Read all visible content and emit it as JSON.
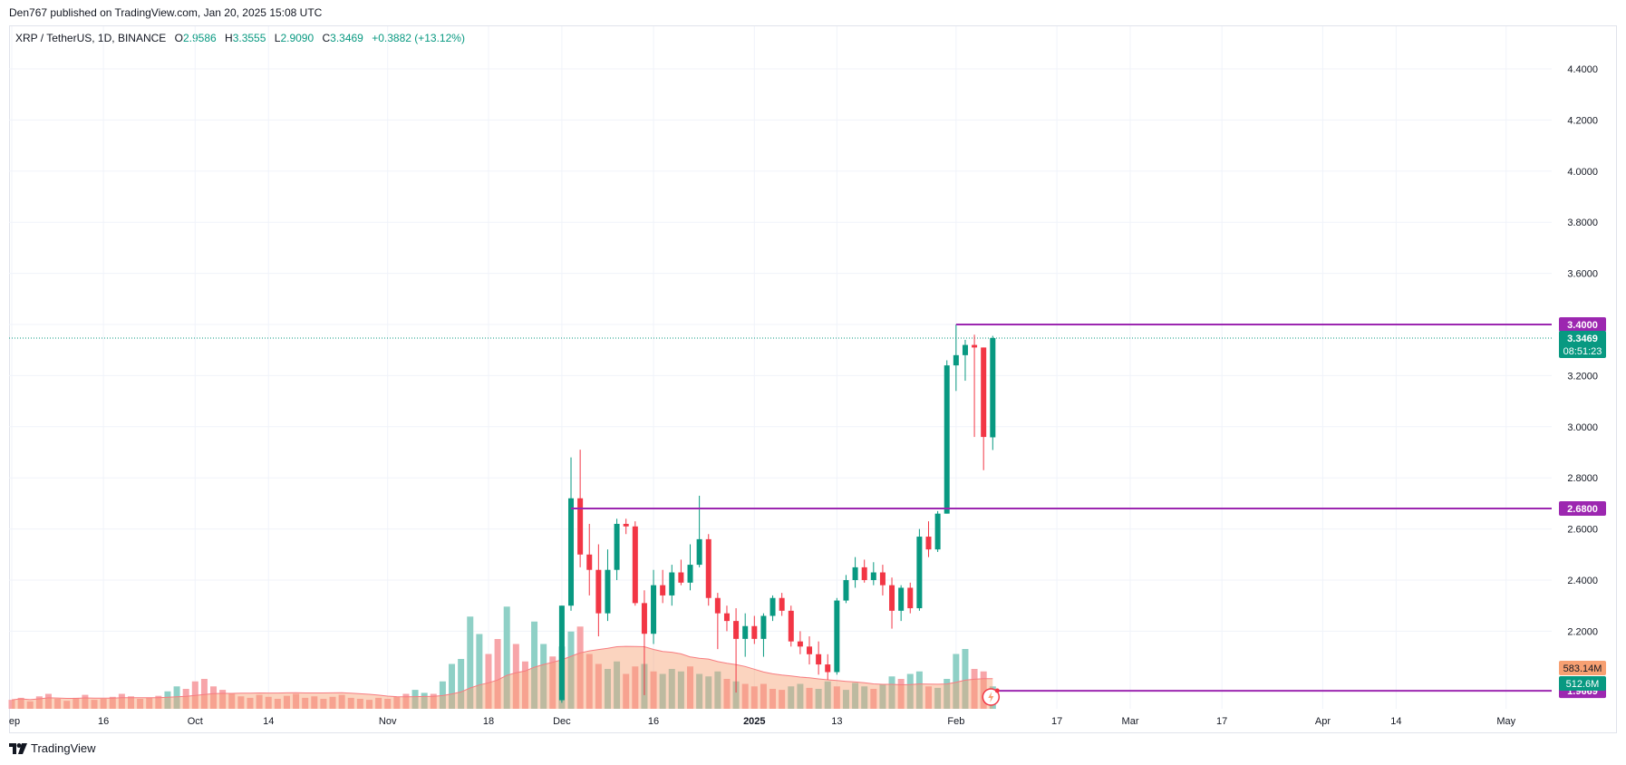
{
  "header": {
    "published_by": "Den767 published on TradingView.com, Jan 20, 2025 15:08 UTC"
  },
  "legend": {
    "symbol": "XRP / TetherUS, 1D, BINANCE",
    "open_label": "O",
    "open": "2.9586",
    "high_label": "H",
    "high": "3.3555",
    "low_label": "L",
    "low": "2.9090",
    "close_label": "C",
    "close": "3.3469",
    "change": "+0.3882 (+13.12%)"
  },
  "footer": {
    "brand": "TradingView"
  },
  "colors": {
    "up": "#089981",
    "down": "#f23645",
    "level": "#9c27b0",
    "vol_up": "#8fd0c6",
    "vol_down": "#f7a5a9",
    "vol_ma": "#f7a072"
  },
  "chart_data": {
    "type": "candlestick",
    "title": "XRP / TetherUS, 1D, BINANCE",
    "yaxis": {
      "ticks": [
        "4.4000",
        "4.2000",
        "4.0000",
        "3.8000",
        "3.6000",
        "3.4000",
        "3.2000",
        "3.0000",
        "2.8000",
        "2.6000",
        "2.4000",
        "2.2000"
      ],
      "tick_values": [
        4.4,
        4.2,
        4.0,
        3.8,
        3.6,
        3.4,
        3.2,
        3.0,
        2.8,
        2.6,
        2.4,
        2.2
      ],
      "range": [
        1.92,
        4.52
      ]
    },
    "xaxis": {
      "labels": [
        {
          "text": "ep",
          "bar": 0
        },
        {
          "text": "16",
          "bar": 10
        },
        {
          "text": "Oct",
          "bar": 20
        },
        {
          "text": "14",
          "bar": 28
        },
        {
          "text": "Nov",
          "bar": 41
        },
        {
          "text": "18",
          "bar": 52
        },
        {
          "text": "Dec",
          "bar": 60
        },
        {
          "text": "16",
          "bar": 70
        },
        {
          "text": "2025",
          "bar": 81
        },
        {
          "text": "13",
          "bar": 90
        },
        {
          "text": "Feb",
          "bar": 103
        },
        {
          "text": "17",
          "bar": 114
        },
        {
          "text": "Mar",
          "bar": 122
        },
        {
          "text": "17",
          "bar": 132
        },
        {
          "text": "Apr",
          "bar": 143
        },
        {
          "text": "14",
          "bar": 151
        },
        {
          "text": "May",
          "bar": 163
        }
      ]
    },
    "candles_start_bar": 60,
    "candles": [
      {
        "o": 1.93,
        "h": 2.3,
        "l": 1.92,
        "c": 2.3
      },
      {
        "o": 2.3,
        "h": 2.88,
        "l": 2.28,
        "c": 2.72
      },
      {
        "o": 2.72,
        "h": 2.91,
        "l": 2.45,
        "c": 2.5
      },
      {
        "o": 2.5,
        "h": 2.62,
        "l": 2.34,
        "c": 2.44
      },
      {
        "o": 2.44,
        "h": 2.54,
        "l": 2.18,
        "c": 2.27
      },
      {
        "o": 2.27,
        "h": 2.52,
        "l": 2.24,
        "c": 2.44
      },
      {
        "o": 2.44,
        "h": 2.64,
        "l": 2.4,
        "c": 2.62
      },
      {
        "o": 2.62,
        "h": 2.64,
        "l": 2.58,
        "c": 2.61
      },
      {
        "o": 2.61,
        "h": 2.63,
        "l": 2.3,
        "c": 2.31
      },
      {
        "o": 2.31,
        "h": 2.36,
        "l": 1.95,
        "c": 2.19
      },
      {
        "o": 2.19,
        "h": 2.44,
        "l": 2.15,
        "c": 2.38
      },
      {
        "o": 2.38,
        "h": 2.44,
        "l": 2.31,
        "c": 2.34
      },
      {
        "o": 2.34,
        "h": 2.46,
        "l": 2.3,
        "c": 2.43
      },
      {
        "o": 2.43,
        "h": 2.48,
        "l": 2.38,
        "c": 2.39
      },
      {
        "o": 2.39,
        "h": 2.54,
        "l": 2.36,
        "c": 2.46
      },
      {
        "o": 2.46,
        "h": 2.73,
        "l": 2.45,
        "c": 2.56
      },
      {
        "o": 2.56,
        "h": 2.58,
        "l": 2.3,
        "c": 2.33
      },
      {
        "o": 2.33,
        "h": 2.35,
        "l": 2.13,
        "c": 2.27
      },
      {
        "o": 2.27,
        "h": 2.3,
        "l": 2.2,
        "c": 2.24
      },
      {
        "o": 2.24,
        "h": 2.29,
        "l": 1.96,
        "c": 2.17
      },
      {
        "o": 2.17,
        "h": 2.27,
        "l": 2.1,
        "c": 2.22
      },
      {
        "o": 2.22,
        "h": 2.26,
        "l": 2.15,
        "c": 2.17
      },
      {
        "o": 2.17,
        "h": 2.27,
        "l": 2.1,
        "c": 2.26
      },
      {
        "o": 2.26,
        "h": 2.34,
        "l": 2.24,
        "c": 2.33
      },
      {
        "o": 2.33,
        "h": 2.35,
        "l": 2.26,
        "c": 2.28
      },
      {
        "o": 2.28,
        "h": 2.3,
        "l": 2.14,
        "c": 2.16
      },
      {
        "o": 2.16,
        "h": 2.2,
        "l": 2.11,
        "c": 2.14
      },
      {
        "o": 2.14,
        "h": 2.18,
        "l": 2.07,
        "c": 2.11
      },
      {
        "o": 2.11,
        "h": 2.16,
        "l": 2.03,
        "c": 2.07
      },
      {
        "o": 2.07,
        "h": 2.11,
        "l": 2.01,
        "c": 2.04
      },
      {
        "o": 2.04,
        "h": 2.33,
        "l": 2.03,
        "c": 2.32
      },
      {
        "o": 2.32,
        "h": 2.42,
        "l": 2.31,
        "c": 2.4
      },
      {
        "o": 2.4,
        "h": 2.49,
        "l": 2.37,
        "c": 2.45
      },
      {
        "o": 2.45,
        "h": 2.48,
        "l": 2.39,
        "c": 2.4
      },
      {
        "o": 2.4,
        "h": 2.47,
        "l": 2.38,
        "c": 2.43
      },
      {
        "o": 2.43,
        "h": 2.46,
        "l": 2.34,
        "c": 2.38
      },
      {
        "o": 2.38,
        "h": 2.41,
        "l": 2.21,
        "c": 2.28
      },
      {
        "o": 2.28,
        "h": 2.38,
        "l": 2.24,
        "c": 2.37
      },
      {
        "o": 2.37,
        "h": 2.39,
        "l": 2.27,
        "c": 2.29
      },
      {
        "o": 2.29,
        "h": 2.6,
        "l": 2.28,
        "c": 2.57
      },
      {
        "o": 2.57,
        "h": 2.63,
        "l": 2.49,
        "c": 2.52
      },
      {
        "o": 2.52,
        "h": 2.67,
        "l": 2.51,
        "c": 2.66
      },
      {
        "o": 2.66,
        "h": 3.26,
        "l": 2.66,
        "c": 3.24
      },
      {
        "o": 3.24,
        "h": 3.4,
        "l": 3.14,
        "c": 3.28
      },
      {
        "o": 3.28,
        "h": 3.34,
        "l": 3.18,
        "c": 3.32
      },
      {
        "o": 3.32,
        "h": 3.36,
        "l": 2.96,
        "c": 3.31
      },
      {
        "o": 3.31,
        "h": 3.31,
        "l": 2.83,
        "c": 2.96
      },
      {
        "o": 2.9586,
        "h": 3.3555,
        "l": 2.909,
        "c": 3.3469
      }
    ],
    "volume_bars": [
      {
        "v": 0.18,
        "up": false
      },
      {
        "v": 0.22,
        "up": false
      },
      {
        "v": 0.15,
        "up": false
      },
      {
        "v": 0.25,
        "up": false
      },
      {
        "v": 0.3,
        "up": false
      },
      {
        "v": 0.2,
        "up": false
      },
      {
        "v": 0.16,
        "up": false
      },
      {
        "v": 0.22,
        "up": false
      },
      {
        "v": 0.28,
        "up": false
      },
      {
        "v": 0.18,
        "up": false
      },
      {
        "v": 0.2,
        "up": false
      },
      {
        "v": 0.24,
        "up": false
      },
      {
        "v": 0.3,
        "up": false
      },
      {
        "v": 0.25,
        "up": false
      },
      {
        "v": 0.2,
        "up": false
      },
      {
        "v": 0.22,
        "up": false
      },
      {
        "v": 0.26,
        "up": false
      },
      {
        "v": 0.35,
        "up": true
      },
      {
        "v": 0.45,
        "up": true
      },
      {
        "v": 0.4,
        "up": false
      },
      {
        "v": 0.55,
        "up": false
      },
      {
        "v": 0.6,
        "up": false
      },
      {
        "v": 0.45,
        "up": false
      },
      {
        "v": 0.38,
        "up": false
      },
      {
        "v": 0.3,
        "up": false
      },
      {
        "v": 0.25,
        "up": false
      },
      {
        "v": 0.22,
        "up": false
      },
      {
        "v": 0.28,
        "up": false
      },
      {
        "v": 0.24,
        "up": false
      },
      {
        "v": 0.2,
        "up": false
      },
      {
        "v": 0.26,
        "up": false
      },
      {
        "v": 0.3,
        "up": false
      },
      {
        "v": 0.22,
        "up": false
      },
      {
        "v": 0.25,
        "up": false
      },
      {
        "v": 0.2,
        "up": false
      },
      {
        "v": 0.24,
        "up": false
      },
      {
        "v": 0.28,
        "up": false
      },
      {
        "v": 0.22,
        "up": false
      },
      {
        "v": 0.2,
        "up": false
      },
      {
        "v": 0.18,
        "up": false
      },
      {
        "v": 0.22,
        "up": false
      },
      {
        "v": 0.2,
        "up": false
      },
      {
        "v": 0.24,
        "up": false
      },
      {
        "v": 0.3,
        "up": false
      },
      {
        "v": 0.38,
        "up": true
      },
      {
        "v": 0.32,
        "up": true
      },
      {
        "v": 0.3,
        "up": false
      },
      {
        "v": 0.55,
        "up": true
      },
      {
        "v": 0.9,
        "up": true
      },
      {
        "v": 1.0,
        "up": true
      },
      {
        "v": 1.85,
        "up": true
      },
      {
        "v": 1.5,
        "up": true
      },
      {
        "v": 1.1,
        "up": false
      },
      {
        "v": 1.4,
        "up": false
      },
      {
        "v": 2.05,
        "up": true
      },
      {
        "v": 1.3,
        "up": false
      },
      {
        "v": 0.95,
        "up": false
      },
      {
        "v": 1.75,
        "up": true
      },
      {
        "v": 1.3,
        "up": true
      },
      {
        "v": 1.05,
        "up": false
      },
      {
        "v": 1.25,
        "up": true
      },
      {
        "v": 1.55,
        "up": true
      },
      {
        "v": 1.65,
        "up": false
      },
      {
        "v": 1.1,
        "up": false
      },
      {
        "v": 0.9,
        "up": false
      },
      {
        "v": 0.8,
        "up": true
      },
      {
        "v": 0.95,
        "up": true
      },
      {
        "v": 0.7,
        "up": false
      },
      {
        "v": 0.85,
        "up": false
      },
      {
        "v": 0.9,
        "up": true
      },
      {
        "v": 0.75,
        "up": false
      },
      {
        "v": 0.7,
        "up": true
      },
      {
        "v": 0.8,
        "up": true
      },
      {
        "v": 0.75,
        "up": true
      },
      {
        "v": 0.85,
        "up": false
      },
      {
        "v": 0.7,
        "up": true
      },
      {
        "v": 0.65,
        "up": true
      },
      {
        "v": 0.75,
        "up": true
      },
      {
        "v": 0.6,
        "up": false
      },
      {
        "v": 0.55,
        "up": true
      },
      {
        "v": 0.5,
        "up": false
      },
      {
        "v": 0.45,
        "up": false
      },
      {
        "v": 0.5,
        "up": false
      },
      {
        "v": 0.4,
        "up": false
      },
      {
        "v": 0.38,
        "up": false
      },
      {
        "v": 0.45,
        "up": true
      },
      {
        "v": 0.5,
        "up": true
      },
      {
        "v": 0.42,
        "up": false
      },
      {
        "v": 0.4,
        "up": true
      },
      {
        "v": 0.55,
        "up": true
      },
      {
        "v": 0.45,
        "up": false
      },
      {
        "v": 0.38,
        "up": true
      },
      {
        "v": 0.52,
        "up": true
      },
      {
        "v": 0.45,
        "up": true
      },
      {
        "v": 0.4,
        "up": false
      },
      {
        "v": 0.5,
        "up": true
      },
      {
        "v": 0.65,
        "up": true
      },
      {
        "v": 0.6,
        "up": false
      },
      {
        "v": 0.7,
        "up": true
      },
      {
        "v": 0.75,
        "up": true
      },
      {
        "v": 0.45,
        "up": false
      },
      {
        "v": 0.42,
        "up": true
      },
      {
        "v": 0.6,
        "up": true
      },
      {
        "v": 1.1,
        "up": true
      },
      {
        "v": 1.2,
        "up": true
      },
      {
        "v": 0.8,
        "up": false
      },
      {
        "v": 0.75,
        "up": false
      },
      {
        "v": 0.45,
        "up": true
      }
    ],
    "levels": [
      {
        "value": 3.4,
        "label": "3.4000",
        "from_candle": 43
      },
      {
        "value": 2.68,
        "label": "2.6800",
        "from_candle": 1
      },
      {
        "value": 1.9669,
        "label": "1.9669",
        "from_candle": 47
      }
    ],
    "current_price": {
      "value": 3.3469,
      "label": "3.3469",
      "countdown": "08:51:23"
    },
    "volume_labels": [
      {
        "label": "583.14M",
        "role": "volume-ma"
      },
      {
        "label": "512.6M",
        "role": "volume"
      }
    ]
  }
}
